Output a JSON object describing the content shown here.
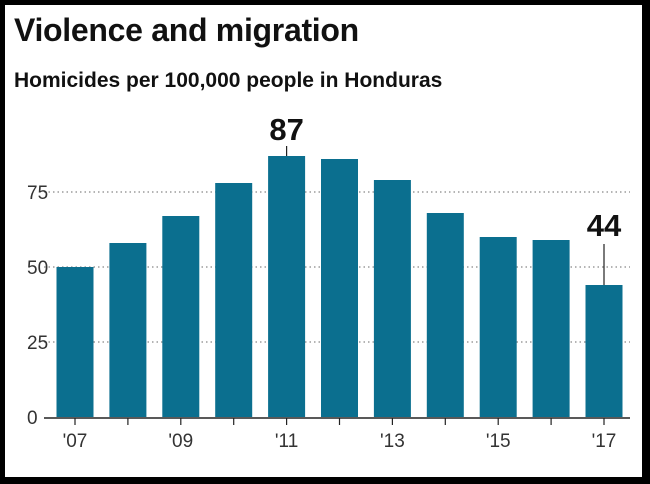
{
  "title": "Violence and migration",
  "subtitle": "Homicides per 100,000 people in Honduras",
  "colors": {
    "bar": "#0b6f8f",
    "grid": "#888888",
    "axis": "#222222"
  },
  "chart_data": {
    "type": "bar",
    "title": "Violence and migration",
    "subtitle": "Homicides per 100,000 people in Honduras",
    "categories": [
      "2007",
      "2008",
      "2009",
      "2010",
      "2011",
      "2012",
      "2013",
      "2014",
      "2015",
      "2016",
      "2017"
    ],
    "values": [
      50,
      58,
      67,
      78,
      87,
      86,
      79,
      68,
      60,
      59,
      44
    ],
    "x_tick_labels": [
      {
        "category": "2007",
        "label": "'07"
      },
      {
        "category": "2009",
        "label": "'09"
      },
      {
        "category": "2011",
        "label": "'11"
      },
      {
        "category": "2013",
        "label": "'13"
      },
      {
        "category": "2015",
        "label": "'15"
      },
      {
        "category": "2017",
        "label": "'17"
      }
    ],
    "y_ticks": [
      0,
      25,
      50,
      75
    ],
    "ylim": [
      0,
      90
    ],
    "grid": "dotted horizontal",
    "annotations": [
      {
        "category": "2011",
        "text": "87"
      },
      {
        "category": "2017",
        "text": "44"
      }
    ],
    "xlabel": "",
    "ylabel": ""
  }
}
